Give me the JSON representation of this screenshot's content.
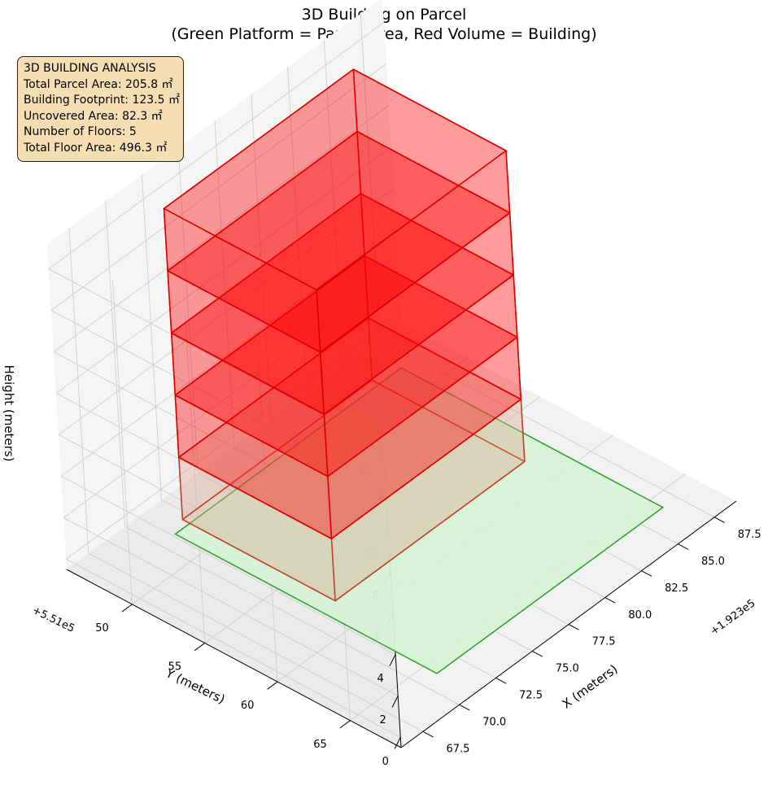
{
  "title": {
    "line1": "3D Building on Parcel",
    "line2": "(Green Platform = Parcel Area, Red Volume = Building)"
  },
  "info_box": {
    "heading": "3D BUILDING ANALYSIS",
    "lines": [
      "Total Parcel Area: 205.8 ㎡",
      "Building Footprint: 123.5 ㎡",
      "Uncovered Area: 82.3 ㎡",
      "Number of Floors: 5",
      "Total Floor Area: 496.3 ㎡"
    ]
  },
  "chart_data": {
    "type": "3d-mesh",
    "title": "3D Building on Parcel\n(Green Platform = Parcel Area, Red Volume = Building)",
    "axes": {
      "x": {
        "label": "X (meters)",
        "offset_label": "+1.923e5",
        "ticks": [
          "67.5",
          "70.0",
          "72.5",
          "75.0",
          "77.5",
          "80.0",
          "82.5",
          "85.0",
          "87.5"
        ]
      },
      "y": {
        "label": "Y (meters)",
        "offset_label": "+5.51e5",
        "ticks": [
          "50",
          "55",
          "60",
          "65"
        ]
      },
      "z": {
        "label": "Height (meters)",
        "ticks": [
          "0",
          "2",
          "4",
          "6",
          "8",
          "10",
          "12",
          "14"
        ]
      }
    },
    "colors": {
      "parcel_fill": "#d6f2d6",
      "parcel_edge": "#2ca02c",
      "building_fill": "#ff0000",
      "building_edge": "#dd0000",
      "lower_block_fill": "#d9a98e",
      "lower_block_edge": "#c0432e",
      "info_box_bg": "#f5deb3"
    },
    "parcel": {
      "x_range": [
        70.5,
        86.0
      ],
      "y_range": [
        48.5,
        66.5
      ],
      "z": 0
    },
    "stories": [
      {
        "x_range": [
          71.5,
          84.5
        ],
        "y_range": [
          48.0,
          58.5
        ],
        "z_range": [
          0,
          3
        ],
        "fill": "lower_block_fill",
        "edge": "lower_block_edge"
      },
      {
        "x_range": [
          71.5,
          84.5
        ],
        "y_range": [
          48.0,
          58.5
        ],
        "z_range": [
          3,
          6
        ],
        "fill": "building_fill",
        "edge": "building_edge"
      },
      {
        "x_range": [
          71.5,
          84.5
        ],
        "y_range": [
          48.0,
          58.5
        ],
        "z_range": [
          6,
          9
        ],
        "fill": "building_fill",
        "edge": "building_edge"
      },
      {
        "x_range": [
          71.5,
          84.5
        ],
        "y_range": [
          48.0,
          58.5
        ],
        "z_range": [
          9,
          12
        ],
        "fill": "building_fill",
        "edge": "building_edge"
      },
      {
        "x_range": [
          71.5,
          84.5
        ],
        "y_range": [
          48.0,
          58.5
        ],
        "z_range": [
          12,
          15
        ],
        "fill": "building_fill",
        "edge": "building_edge"
      }
    ],
    "grid": true
  }
}
